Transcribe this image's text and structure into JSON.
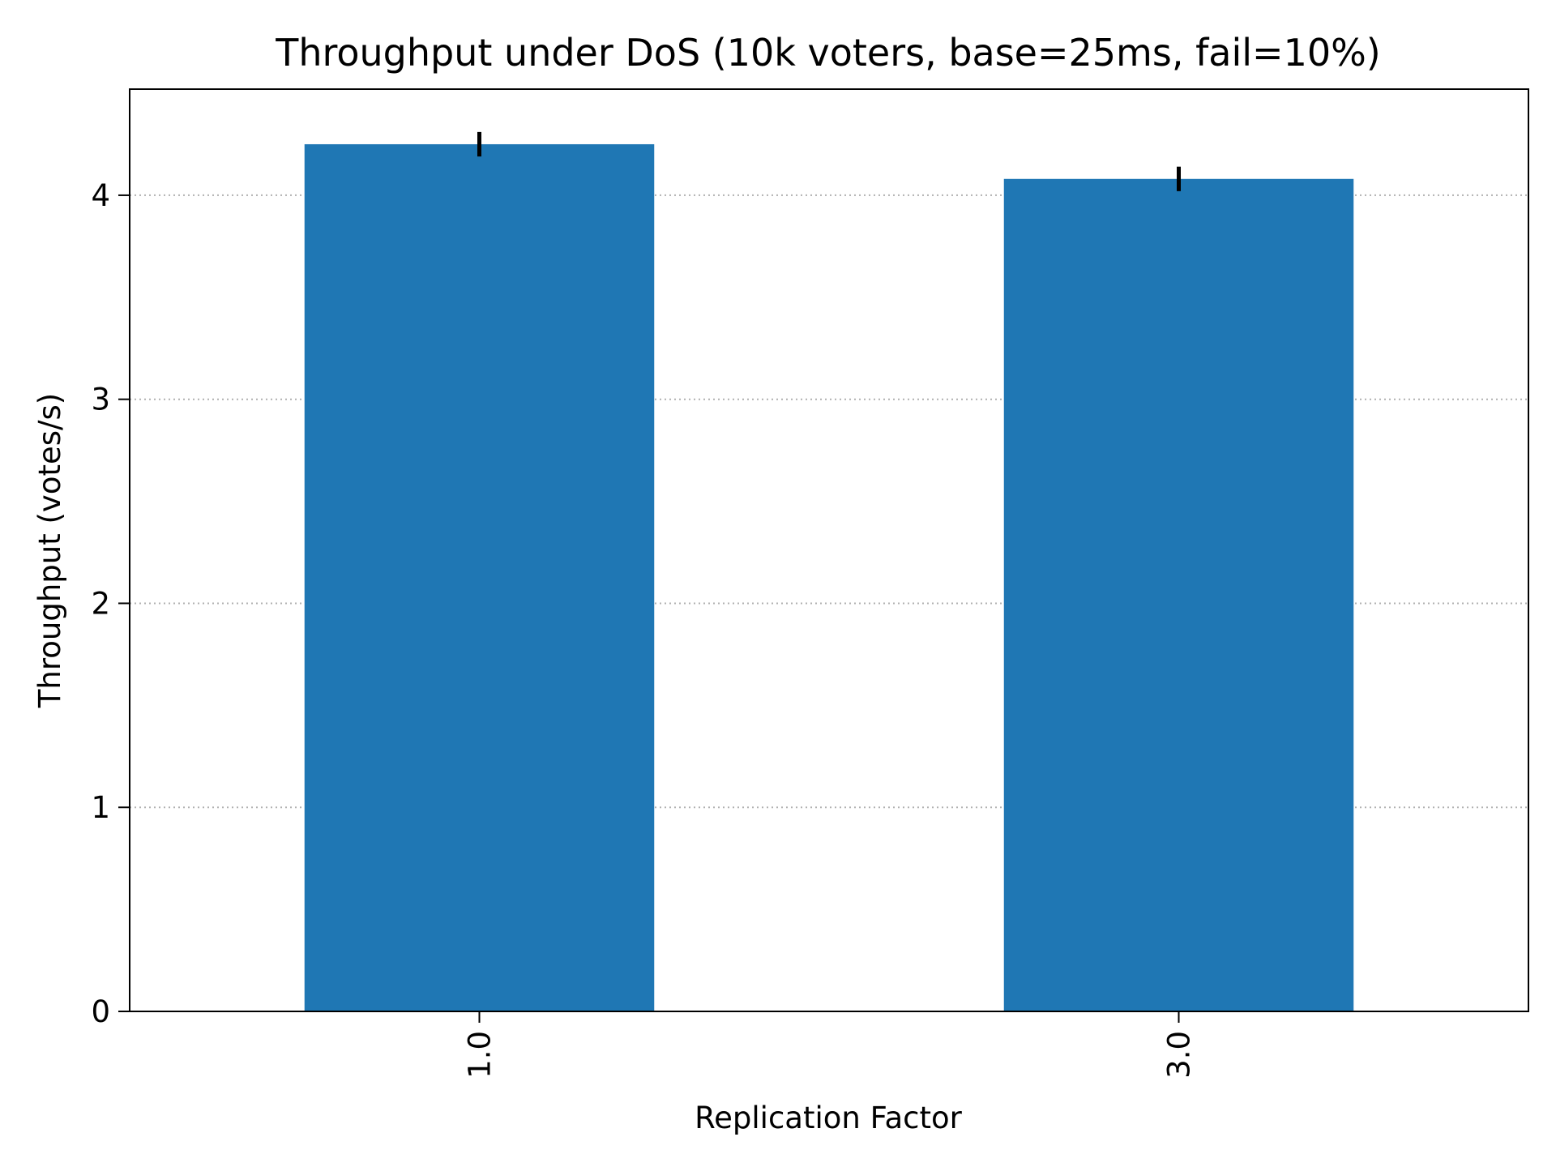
{
  "chart_data": {
    "type": "bar",
    "title": "Throughput under DoS (10k voters, base=25ms, fail=10%)",
    "xlabel": "Replication Factor",
    "ylabel": "Throughput (votes/s)",
    "categories": [
      "1.0",
      "3.0"
    ],
    "values": [
      4.25,
      4.08
    ],
    "errors": [
      0.06,
      0.06
    ],
    "ylim": [
      0,
      4.52
    ],
    "yticks": [
      {
        "value": 0,
        "label": "0"
      },
      {
        "value": 1,
        "label": "1"
      },
      {
        "value": 2,
        "label": "2"
      },
      {
        "value": 3,
        "label": "3"
      },
      {
        "value": 4,
        "label": "4"
      }
    ],
    "grid": "y-dotted",
    "colors": {
      "bar": "#1f77b4",
      "error": "#000000",
      "grid": "#b0b0b0"
    }
  }
}
